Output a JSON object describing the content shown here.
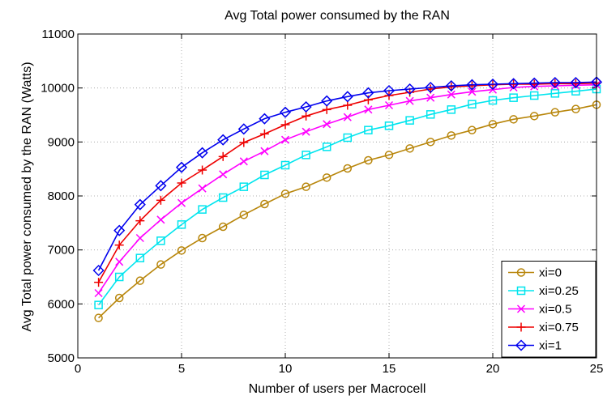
{
  "chart_data": {
    "type": "line",
    "title": "Avg Total power consumed by the RAN",
    "xlabel": "Number of users per Macrocell",
    "ylabel": "Avg Total power consumed by the RAN (Watts)",
    "xlim": [
      0,
      25
    ],
    "ylim": [
      5000,
      11000
    ],
    "xticks": [
      0,
      5,
      10,
      15,
      20,
      25
    ],
    "yticks": [
      5000,
      6000,
      7000,
      8000,
      9000,
      10000,
      11000
    ],
    "grid": true,
    "legend_position": "bottom-right",
    "x": [
      1,
      2,
      3,
      4,
      5,
      6,
      7,
      8,
      9,
      10,
      11,
      12,
      13,
      14,
      15,
      16,
      17,
      18,
      19,
      20,
      21,
      22,
      23,
      24,
      25
    ],
    "series": [
      {
        "name": "xi=0",
        "color": "#b8860b",
        "marker": "circle",
        "values": [
          5740,
          6110,
          6430,
          6730,
          6990,
          7220,
          7430,
          7650,
          7850,
          8040,
          8170,
          8340,
          8510,
          8660,
          8760,
          8880,
          9000,
          9120,
          9220,
          9330,
          9420,
          9480,
          9550,
          9610,
          9690
        ]
      },
      {
        "name": "xi=0.25",
        "color": "#00e5ee",
        "marker": "square",
        "values": [
          5980,
          6500,
          6850,
          7170,
          7470,
          7750,
          7970,
          8170,
          8390,
          8570,
          8760,
          8910,
          9080,
          9220,
          9300,
          9400,
          9510,
          9600,
          9700,
          9770,
          9820,
          9860,
          9900,
          9940,
          9980
        ]
      },
      {
        "name": "xi=0.5",
        "color": "#ff00ff",
        "marker": "x",
        "values": [
          6200,
          6780,
          7220,
          7560,
          7870,
          8140,
          8400,
          8640,
          8830,
          9040,
          9190,
          9330,
          9460,
          9600,
          9680,
          9760,
          9820,
          9880,
          9930,
          9970,
          10010,
          10030,
          10040,
          10050,
          10060
        ]
      },
      {
        "name": "xi=0.75",
        "color": "#ee0000",
        "marker": "plus",
        "values": [
          6400,
          7090,
          7540,
          7920,
          8240,
          8480,
          8730,
          8990,
          9150,
          9320,
          9480,
          9600,
          9680,
          9780,
          9860,
          9920,
          9980,
          10020,
          10040,
          10060,
          10070,
          10070,
          10080,
          10080,
          10090
        ]
      },
      {
        "name": "xi=1",
        "color": "#0000ee",
        "marker": "diamond",
        "values": [
          6620,
          7360,
          7840,
          8190,
          8530,
          8800,
          9040,
          9240,
          9430,
          9550,
          9650,
          9760,
          9840,
          9910,
          9950,
          9980,
          10010,
          10040,
          10060,
          10070,
          10080,
          10090,
          10100,
          10100,
          10110
        ]
      }
    ]
  }
}
